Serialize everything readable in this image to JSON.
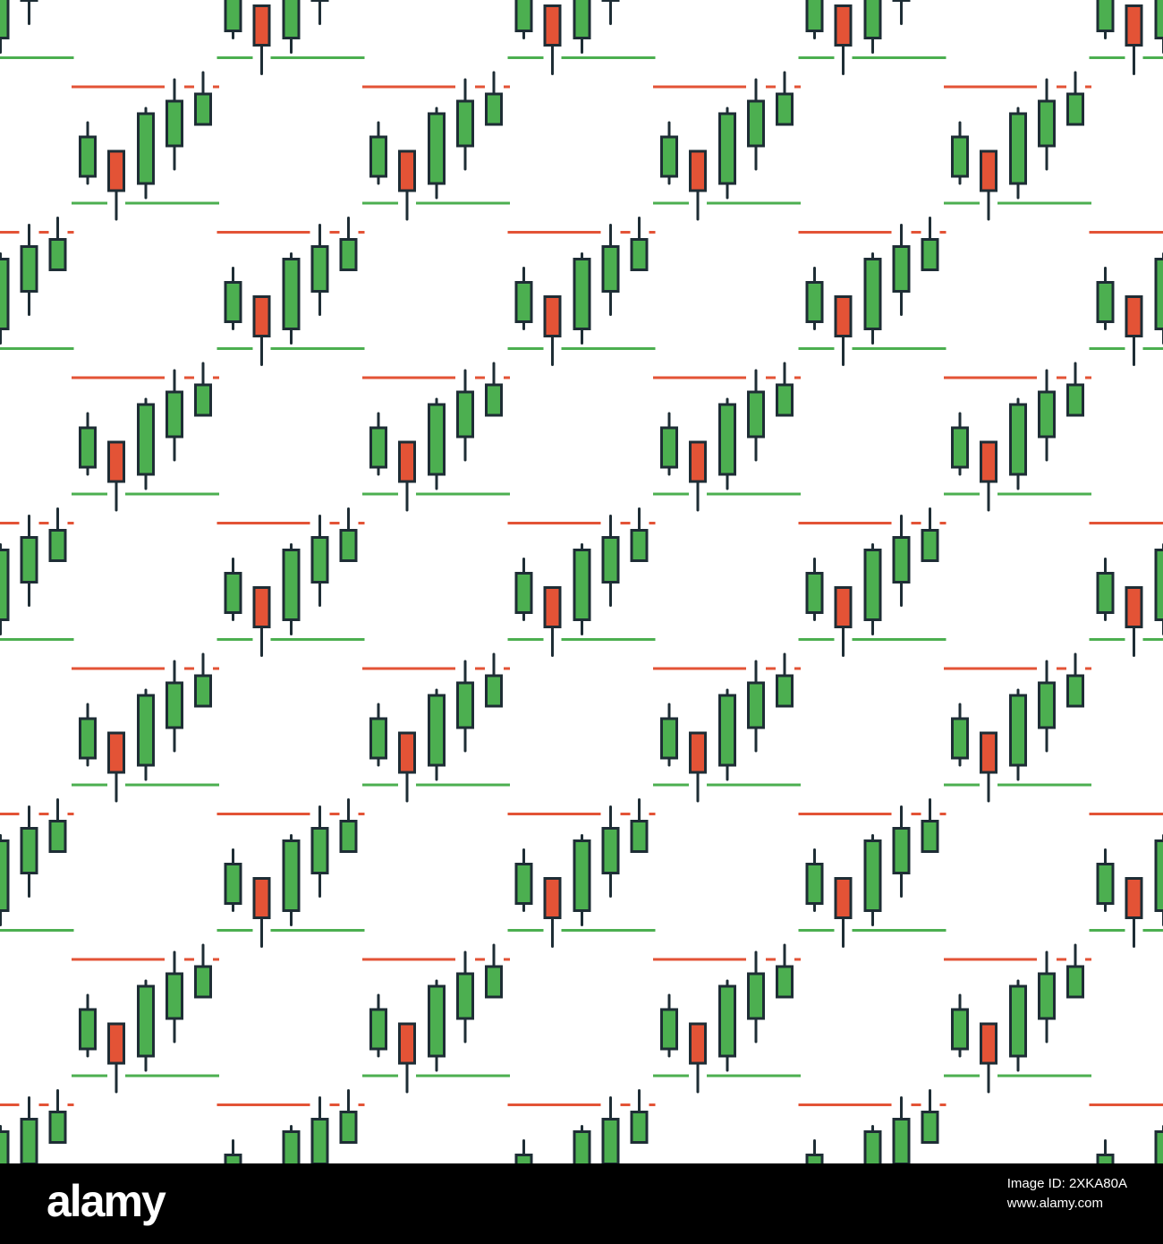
{
  "colors": {
    "background": "#ffffff",
    "bull_fill": "#4caf50",
    "bear_fill": "#e35336",
    "outline": "#1e2d35",
    "resistance_line": "#e35336",
    "support_line": "#4caf50",
    "watermark_bar": "#000000",
    "watermark_text": "#ffffff"
  },
  "pattern": {
    "motif": "candlestick-chart-icon",
    "icon_candles": [
      {
        "direction": "bull"
      },
      {
        "direction": "bear"
      },
      {
        "direction": "bull"
      },
      {
        "direction": "bull"
      },
      {
        "direction": "bull"
      }
    ],
    "icon_lines": [
      "resistance-line",
      "support-line"
    ]
  },
  "watermark": {
    "logo_text": "alamy",
    "image_id_label": "Image ID: 2XKA80A",
    "site_label": "www.alamy.com"
  }
}
